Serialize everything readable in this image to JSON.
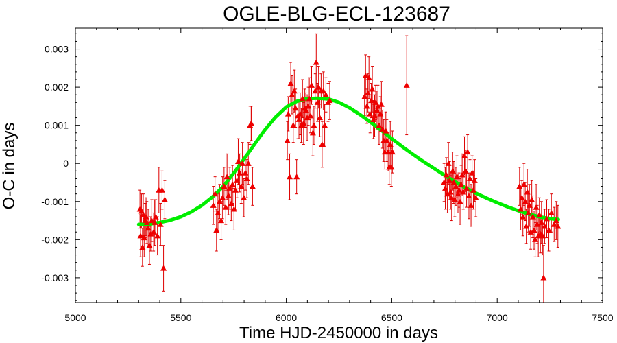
{
  "chart_data": {
    "type": "scatter",
    "title": "OGLE-BLG-ECL-123687",
    "xlabel": "Time HJD-2450000 in days",
    "ylabel": "O-C in days",
    "xlim": [
      5000,
      7500
    ],
    "ylim": [
      -0.00365,
      0.00355
    ],
    "xticks": [
      {
        "v": 5000,
        "label": "5000"
      },
      {
        "v": 5500,
        "label": "5500"
      },
      {
        "v": 6000,
        "label": "6000"
      },
      {
        "v": 6500,
        "label": "6500"
      },
      {
        "v": 7000,
        "label": "7000"
      },
      {
        "v": 7500,
        "label": "7500"
      }
    ],
    "yticks": [
      {
        "v": 0.003,
        "label": "0.003"
      },
      {
        "v": 0.002,
        "label": "0.002"
      },
      {
        "v": 0.001,
        "label": "0.001"
      },
      {
        "v": 0,
        "label": "0"
      },
      {
        "v": -0.001,
        "label": "-0.001"
      },
      {
        "v": -0.002,
        "label": "-0.002"
      },
      {
        "v": -0.003,
        "label": "-0.003"
      }
    ],
    "grid": false,
    "colors": {
      "points": "#ee0000",
      "errorbars": "#dd0000",
      "fit": "#00ee00",
      "frame": "#000000"
    },
    "series": [
      {
        "type": "scatter-errorbars",
        "marker": "triangle-up",
        "points": [
          [
            5306,
            -0.0012,
            0.0005
          ],
          [
            5309,
            -0.0019,
            0.00055
          ],
          [
            5314,
            -0.00125,
            0.00045
          ],
          [
            5318,
            -0.0022,
            0.0005
          ],
          [
            5322,
            -0.00135,
            0.00055
          ],
          [
            5326,
            -0.00195,
            0.0005
          ],
          [
            5331,
            -0.0015,
            0.00045
          ],
          [
            5335,
            -0.0014,
            0.0005
          ],
          [
            5339,
            -0.00155,
            0.00055
          ],
          [
            5345,
            -0.0017,
            0.0005
          ],
          [
            5351,
            -0.00215,
            0.0005
          ],
          [
            5357,
            -0.00185,
            0.00045
          ],
          [
            5362,
            -0.0015,
            0.00055
          ],
          [
            5371,
            -0.0018,
            0.0005
          ],
          [
            5376,
            -0.00155,
            0.0006
          ],
          [
            5381,
            -0.0014,
            0.00045
          ],
          [
            5389,
            -0.0019,
            0.0005
          ],
          [
            5396,
            -0.0007,
            0.0006
          ],
          [
            5404,
            -0.0016,
            0.00055
          ],
          [
            5411,
            -0.0007,
            0.0005
          ],
          [
            5418,
            -0.00275,
            0.0006
          ],
          [
            5424,
            -0.00095,
            0.0005
          ],
          [
            5654,
            -0.0011,
            0.0005
          ],
          [
            5662,
            -0.0008,
            0.00045
          ],
          [
            5669,
            -0.00175,
            0.00055
          ],
          [
            5676,
            -0.0013,
            0.0005
          ],
          [
            5684,
            -0.001,
            0.00045
          ],
          [
            5691,
            -0.0015,
            0.0005
          ],
          [
            5698,
            -0.0009,
            0.00055
          ],
          [
            5705,
            -0.0006,
            0.0005
          ],
          [
            5713,
            -0.00115,
            0.00045
          ],
          [
            5719,
            -0.00035,
            0.0006
          ],
          [
            5726,
            -0.00085,
            0.0005
          ],
          [
            5732,
            -0.00065,
            0.00055
          ],
          [
            5739,
            -0.00105,
            0.00045
          ],
          [
            5745,
            -0.00055,
            0.0005
          ],
          [
            5752,
            -0.0012,
            0.00055
          ],
          [
            5759,
            -0.0007,
            0.0005
          ],
          [
            5766,
            -0.00045,
            0.00045
          ],
          [
            5772,
            5e-05,
            0.0006
          ],
          [
            5779,
            -0.00025,
            0.0005
          ],
          [
            5786,
            -0.0006,
            0.00045
          ],
          [
            5792,
            0.0,
            0.00055
          ],
          [
            5799,
            -0.0009,
            0.0005
          ],
          [
            5806,
            -0.00025,
            0.00045
          ],
          [
            5813,
            -0.0004,
            0.0005
          ],
          [
            5820,
            0.0,
            0.00055
          ],
          [
            5828,
            0.001,
            0.0005
          ],
          [
            5834,
            0.00105,
            0.00045
          ],
          [
            5840,
            -0.0006,
            0.0005
          ],
          [
            6005,
            0.0006,
            0.0005
          ],
          [
            6009,
            0.0013,
            0.00045
          ],
          [
            6016,
            -0.00035,
            0.0006
          ],
          [
            6021,
            0.0021,
            0.00055
          ],
          [
            6027,
            0.0018,
            0.0005
          ],
          [
            6033,
            0.001,
            0.00045
          ],
          [
            6038,
            0.0019,
            0.00055
          ],
          [
            6044,
            0.00145,
            0.0005
          ],
          [
            6049,
            -0.00035,
            0.00045
          ],
          [
            6055,
            0.00125,
            0.0006
          ],
          [
            6060,
            0.00115,
            0.0005
          ],
          [
            6066,
            0.0013,
            0.00055
          ],
          [
            6071,
            0.001,
            0.00045
          ],
          [
            6077,
            0.0017,
            0.0005
          ],
          [
            6082,
            0.00105,
            0.00055
          ],
          [
            6088,
            0.00145,
            0.0005
          ],
          [
            6093,
            0.0014,
            0.00045
          ],
          [
            6099,
            0.0012,
            0.0006
          ],
          [
            6104,
            0.0015,
            0.0005
          ],
          [
            6109,
            0.0017,
            0.00055
          ],
          [
            6115,
            0.00125,
            0.00045
          ],
          [
            6120,
            0.00205,
            0.0005
          ],
          [
            6126,
            0.0008,
            0.0006
          ],
          [
            6131,
            0.001,
            0.0005
          ],
          [
            6137,
            0.0019,
            0.00045
          ],
          [
            6142,
            0.00265,
            0.00075
          ],
          [
            6148,
            0.0016,
            0.0005
          ],
          [
            6153,
            0.002,
            0.00055
          ],
          [
            6159,
            0.0012,
            0.0005
          ],
          [
            6165,
            0.0019,
            0.00045
          ],
          [
            6170,
            0.0005,
            0.0006
          ],
          [
            6176,
            0.0019,
            0.0005
          ],
          [
            6182,
            0.001,
            0.00055
          ],
          [
            6188,
            0.0018,
            0.00045
          ],
          [
            6198,
            0.0016,
            0.0005
          ],
          [
            6206,
            0.00165,
            0.0005
          ],
          [
            6371,
            0.00175,
            0.0005
          ],
          [
            6376,
            0.0023,
            0.00055
          ],
          [
            6382,
            0.0015,
            0.00045
          ],
          [
            6387,
            0.00185,
            0.0005
          ],
          [
            6392,
            0.00225,
            0.00055
          ],
          [
            6397,
            0.0013,
            0.0005
          ],
          [
            6403,
            0.00165,
            0.00045
          ],
          [
            6408,
            0.00195,
            0.0006
          ],
          [
            6413,
            0.00115,
            0.0005
          ],
          [
            6419,
            0.00125,
            0.00055
          ],
          [
            6424,
            0.0016,
            0.00045
          ],
          [
            6430,
            0.0014,
            0.0005
          ],
          [
            6435,
            0.0015,
            0.00055
          ],
          [
            6440,
            0.001,
            0.0005
          ],
          [
            6446,
            0.0013,
            0.00045
          ],
          [
            6451,
            0.00155,
            0.0006
          ],
          [
            6456,
            0.0009,
            0.0005
          ],
          [
            6462,
            0.0006,
            0.00055
          ],
          [
            6467,
            0.0003,
            0.00045
          ],
          [
            6472,
            0.00085,
            0.0005
          ],
          [
            6477,
            0.0006,
            0.00055
          ],
          [
            6483,
            0.0003,
            0.0005
          ],
          [
            6488,
            -0.0001,
            0.00045
          ],
          [
            6493,
            0.0005,
            0.0006
          ],
          [
            6498,
            -0.0001,
            0.0005
          ],
          [
            6503,
            0.0003,
            0.00055
          ],
          [
            6571,
            0.00205,
            0.0013
          ],
          [
            6748,
            -0.0005,
            0.0005
          ],
          [
            6754,
            -0.00065,
            0.00055
          ],
          [
            6759,
            -0.0003,
            0.00045
          ],
          [
            6764,
            -0.0008,
            0.0005
          ],
          [
            6769,
            0.0,
            0.00055
          ],
          [
            6774,
            -0.00045,
            0.0005
          ],
          [
            6779,
            -0.00075,
            0.00045
          ],
          [
            6784,
            -0.0009,
            0.0006
          ],
          [
            6789,
            -0.0002,
            0.0005
          ],
          [
            6794,
            -0.0005,
            0.00055
          ],
          [
            6799,
            -0.00095,
            0.00045
          ],
          [
            6804,
            -0.0006,
            0.0005
          ],
          [
            6809,
            -0.00035,
            0.00055
          ],
          [
            6814,
            -0.0008,
            0.0005
          ],
          [
            6819,
            -0.0007,
            0.00045
          ],
          [
            6824,
            -0.001,
            0.0006
          ],
          [
            6829,
            -0.00055,
            0.0005
          ],
          [
            6834,
            -0.0003,
            0.00055
          ],
          [
            6839,
            -0.00075,
            0.00045
          ],
          [
            6845,
            0.0002,
            0.0005
          ],
          [
            6850,
            -0.0002,
            0.00055
          ],
          [
            6855,
            -0.00065,
            0.0005
          ],
          [
            6860,
            0.0003,
            0.00045
          ],
          [
            6866,
            -0.00085,
            0.0006
          ],
          [
            6871,
            -0.0004,
            0.0005
          ],
          [
            6876,
            -0.0011,
            0.00055
          ],
          [
            6881,
            -0.00025,
            0.00045
          ],
          [
            6887,
            -0.0007,
            0.0005
          ],
          [
            6893,
            -0.00045,
            0.00055
          ],
          [
            6899,
            -0.0009,
            0.0005
          ],
          [
            7106,
            -0.0006,
            0.0005
          ],
          [
            7111,
            -0.0012,
            0.00055
          ],
          [
            7117,
            -0.0009,
            0.00045
          ],
          [
            7122,
            -0.0014,
            0.0005
          ],
          [
            7127,
            -0.00055,
            0.00055
          ],
          [
            7133,
            -0.001,
            0.0005
          ],
          [
            7138,
            -0.00165,
            0.00045
          ],
          [
            7143,
            -0.00075,
            0.0006
          ],
          [
            7148,
            -0.0013,
            0.0005
          ],
          [
            7153,
            -0.0011,
            0.00055
          ],
          [
            7159,
            -0.0018,
            0.00045
          ],
          [
            7164,
            -0.00095,
            0.0005
          ],
          [
            7169,
            -0.0014,
            0.00055
          ],
          [
            7175,
            -0.00175,
            0.0005
          ],
          [
            7180,
            -0.002,
            0.00045
          ],
          [
            7185,
            -0.00115,
            0.0006
          ],
          [
            7190,
            -0.0016,
            0.0005
          ],
          [
            7195,
            -0.0019,
            0.00055
          ],
          [
            7200,
            -0.00135,
            0.00045
          ],
          [
            7205,
            -0.00185,
            0.0005
          ],
          [
            7210,
            -0.00155,
            0.00055
          ],
          [
            7215,
            -0.0019,
            0.0005
          ],
          [
            7220,
            -0.003,
            0.00085
          ],
          [
            7225,
            -0.00165,
            0.00045
          ],
          [
            7235,
            -0.00145,
            0.0005
          ],
          [
            7245,
            -0.00175,
            0.00055
          ],
          [
            7257,
            -0.0013,
            0.0005
          ],
          [
            7270,
            -0.0016,
            0.00045
          ],
          [
            7280,
            -0.0015,
            0.0005
          ],
          [
            7288,
            -0.00165,
            0.00055
          ]
        ]
      },
      {
        "type": "line",
        "x": [
          5300,
          5350,
          5400,
          5450,
          5500,
          5550,
          5600,
          5650,
          5700,
          5750,
          5800,
          5850,
          5900,
          5950,
          6000,
          6050,
          6100,
          6150,
          6200,
          6250,
          6300,
          6350,
          6400,
          6450,
          6500,
          6550,
          6600,
          6650,
          6700,
          6750,
          6800,
          6850,
          6900,
          6950,
          7000,
          7050,
          7100,
          7150,
          7200,
          7250,
          7290
        ],
        "y": [
          -0.0016,
          -0.00159,
          -0.00155,
          -0.00149,
          -0.0014,
          -0.00127,
          -0.0011,
          -0.00088,
          -0.00061,
          -0.00026,
          0.00012,
          0.00051,
          0.00089,
          0.00122,
          0.00148,
          0.00163,
          0.0017,
          0.00171,
          0.00169,
          0.0016,
          0.00146,
          0.00128,
          0.00108,
          0.00087,
          0.00065,
          0.00044,
          0.00024,
          5e-05,
          -0.00013,
          -0.00031,
          -0.00048,
          -0.00064,
          -0.00078,
          -0.00091,
          -0.00103,
          -0.00114,
          -0.00124,
          -0.00133,
          -0.0014,
          -0.00145,
          -0.00147
        ]
      }
    ]
  }
}
